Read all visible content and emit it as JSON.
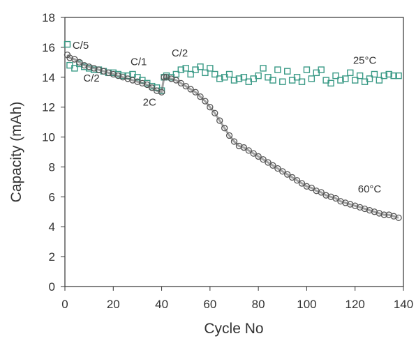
{
  "chart_data": {
    "type": "scatter",
    "xlabel": "Cycle No",
    "ylabel": "Capacity (mAh)",
    "xlim": [
      0,
      140
    ],
    "ylim": [
      0,
      18
    ],
    "xticks": [
      0,
      20,
      40,
      60,
      80,
      100,
      120,
      140
    ],
    "yticks": [
      0,
      2,
      4,
      6,
      8,
      10,
      12,
      14,
      16,
      18
    ],
    "grid": false,
    "series": [
      {
        "name": "25°C",
        "color": "#3a9a86",
        "marker": "square-open",
        "x": [
          1,
          2,
          4,
          6,
          8,
          10,
          12,
          14,
          16,
          18,
          20,
          22,
          24,
          26,
          28,
          30,
          32,
          34,
          36,
          38,
          40,
          41,
          42,
          44,
          46,
          48,
          50,
          52,
          54,
          56,
          58,
          60,
          62,
          64,
          66,
          68,
          70,
          72,
          74,
          76,
          78,
          80,
          82,
          84,
          86,
          88,
          90,
          92,
          94,
          96,
          98,
          100,
          102,
          104,
          106,
          108,
          110,
          112,
          114,
          116,
          118,
          120,
          122,
          124,
          126,
          128,
          130,
          132,
          134,
          136,
          138
        ],
        "y": [
          16.2,
          14.8,
          14.6,
          14.9,
          14.7,
          14.6,
          14.5,
          14.5,
          14.4,
          14.3,
          14.3,
          14.2,
          14.1,
          14.1,
          14.2,
          14.0,
          13.8,
          13.6,
          13.4,
          13.3,
          13.1,
          14.0,
          14.1,
          14.0,
          14.2,
          14.5,
          14.6,
          14.2,
          14.5,
          14.7,
          14.3,
          14.6,
          14.2,
          13.9,
          14.0,
          14.2,
          13.8,
          13.9,
          14.0,
          13.7,
          13.9,
          14.1,
          14.6,
          14.0,
          13.8,
          14.5,
          13.7,
          14.4,
          13.8,
          14.0,
          13.7,
          14.5,
          13.9,
          14.3,
          14.5,
          13.8,
          13.6,
          14.1,
          13.8,
          13.9,
          14.3,
          13.8,
          14.1,
          13.7,
          13.9,
          14.2,
          13.8,
          14.1,
          14.2,
          14.1,
          14.1
        ]
      },
      {
        "name": "60°C",
        "color": "#555555",
        "marker": "circle-open",
        "x": [
          1,
          2,
          4,
          6,
          8,
          10,
          12,
          14,
          16,
          18,
          20,
          22,
          24,
          26,
          28,
          30,
          32,
          34,
          36,
          38,
          40,
          41,
          42,
          44,
          46,
          48,
          50,
          52,
          54,
          56,
          58,
          60,
          62,
          64,
          66,
          68,
          70,
          72,
          74,
          76,
          78,
          80,
          82,
          84,
          86,
          88,
          90,
          92,
          94,
          96,
          98,
          100,
          102,
          104,
          106,
          108,
          110,
          112,
          114,
          116,
          118,
          120,
          122,
          124,
          126,
          128,
          130,
          132,
          134,
          136,
          138
        ],
        "y": [
          15.5,
          15.3,
          15.2,
          15.0,
          14.8,
          14.7,
          14.6,
          14.5,
          14.4,
          14.3,
          14.2,
          14.1,
          14.0,
          13.9,
          13.8,
          13.7,
          13.6,
          13.5,
          13.3,
          13.1,
          13.0,
          14.0,
          14.0,
          13.9,
          13.8,
          13.6,
          13.4,
          13.2,
          13.0,
          12.7,
          12.4,
          12.0,
          11.6,
          11.1,
          10.6,
          10.1,
          9.7,
          9.4,
          9.3,
          9.1,
          8.9,
          8.7,
          8.5,
          8.3,
          8.1,
          7.9,
          7.7,
          7.5,
          7.3,
          7.1,
          6.9,
          6.7,
          6.6,
          6.4,
          6.3,
          6.1,
          6.0,
          5.9,
          5.7,
          5.6,
          5.5,
          5.4,
          5.3,
          5.2,
          5.1,
          5.0,
          4.9,
          4.8,
          4.8,
          4.7,
          4.6
        ]
      }
    ],
    "annotations": [
      {
        "text": "C/5",
        "x": 6.5,
        "y": 15.9
      },
      {
        "text": "C/2",
        "x": 11,
        "y": 13.7
      },
      {
        "text": "C/1",
        "x": 30.5,
        "y": 14.8
      },
      {
        "text": "2C",
        "x": 35,
        "y": 12.1
      },
      {
        "text": "C/2",
        "x": 47.5,
        "y": 15.4
      },
      {
        "text": "25°C",
        "x": 124,
        "y": 14.9
      },
      {
        "text": "60°C",
        "x": 126,
        "y": 6.3
      }
    ]
  }
}
